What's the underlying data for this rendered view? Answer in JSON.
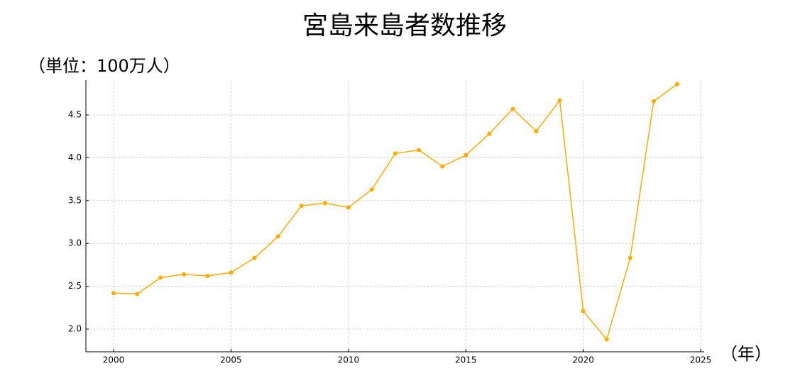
{
  "chart_data": {
    "type": "line",
    "title": "宮島来島者数推移",
    "y_label": "（単位：100万人）",
    "x_label": "（年）",
    "x": [
      2000,
      2001,
      2002,
      2003,
      2004,
      2005,
      2006,
      2007,
      2008,
      2009,
      2010,
      2011,
      2012,
      2013,
      2014,
      2015,
      2016,
      2017,
      2018,
      2019,
      2020,
      2021,
      2022,
      2023,
      2024
    ],
    "series": [
      {
        "color": "#ffaa00",
        "values": [
          2.42,
          2.41,
          2.6,
          2.64,
          2.62,
          2.66,
          2.83,
          3.08,
          3.44,
          3.47,
          3.42,
          3.63,
          4.05,
          4.09,
          3.9,
          4.03,
          4.28,
          4.57,
          4.31,
          4.67,
          2.21,
          1.88,
          2.83,
          4.66,
          4.86
        ]
      }
    ],
    "xlim": [
      1998.82,
      2025.15
    ],
    "ylim": [
      1.735,
      4.906
    ],
    "xticks": [
      2000,
      2005,
      2010,
      2015,
      2020,
      2025
    ],
    "yticks": [
      {
        "value": 2,
        "label": "2.0"
      },
      {
        "value": 2.5,
        "label": "2.5"
      },
      {
        "value": 3,
        "label": "3.0"
      },
      {
        "value": 3.5,
        "label": "3.5"
      },
      {
        "value": 4,
        "label": "4.0"
      },
      {
        "value": 4.5,
        "label": "4.5"
      }
    ],
    "grid": true
  }
}
